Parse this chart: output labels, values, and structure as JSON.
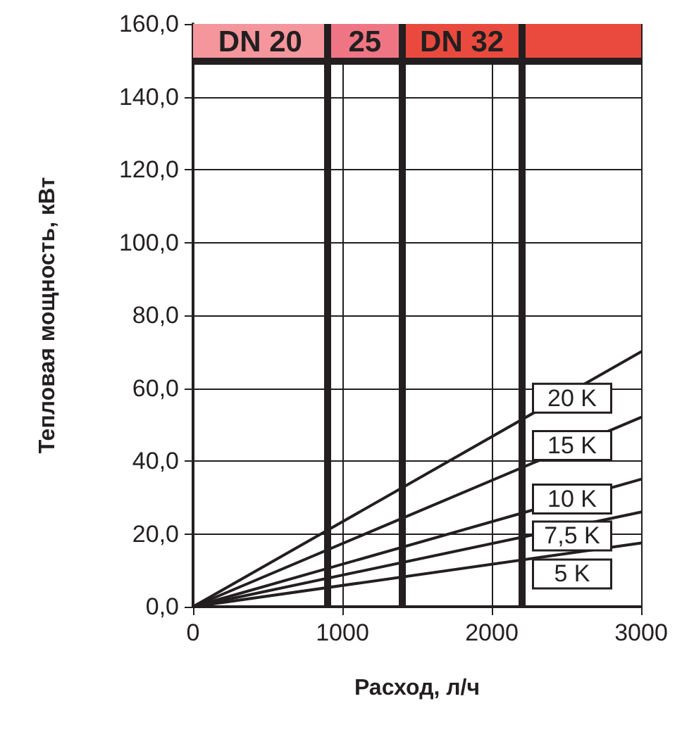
{
  "chart_data": {
    "type": "line",
    "xlabel": "Расход, л/ч",
    "ylabel": "Тепловая мощность, кВт",
    "x": [
      0,
      3000
    ],
    "series": [
      {
        "name": "20 K",
        "color": "#231f20",
        "values": [
          0,
          70
        ]
      },
      {
        "name": "15 K",
        "color": "#231f20",
        "values": [
          0,
          52
        ]
      },
      {
        "name": "10 K",
        "color": "#231f20",
        "values": [
          0,
          35
        ]
      },
      {
        "name": "7,5 K",
        "color": "#231f20",
        "values": [
          0,
          26
        ]
      },
      {
        "name": "5 K",
        "color": "#231f20",
        "values": [
          0,
          17.5
        ]
      }
    ],
    "xlim": [
      0,
      3000
    ],
    "xticks": [
      0,
      1000,
      2000,
      3000
    ],
    "ylim": [
      0,
      160
    ],
    "yticks": [
      {
        "value": 0,
        "label": "0,0"
      },
      {
        "value": 20,
        "label": "20,0"
      },
      {
        "value": 40,
        "label": "40,0"
      },
      {
        "value": 60,
        "label": "60,0"
      },
      {
        "value": 80,
        "label": "80,0"
      },
      {
        "value": 100,
        "label": "100,0"
      },
      {
        "value": 120,
        "label": "120,0"
      },
      {
        "value": 140,
        "label": "140,0"
      },
      {
        "value": 160,
        "label": "160,0"
      }
    ],
    "grid": true,
    "legend": "bottom right",
    "marker": "none",
    "line_style": "solid",
    "ref_lines": [
      {
        "axis": "x",
        "value": 900,
        "color": "#231f20"
      },
      {
        "axis": "x",
        "value": 1400,
        "color": "#231f20"
      },
      {
        "axis": "x",
        "value": 2200,
        "color": "#231f20"
      },
      {
        "axis": "y",
        "value": 150,
        "color": "#231f20"
      }
    ],
    "bands": [
      {
        "axis": "x",
        "from": 0,
        "to": 900,
        "label": "DN 20",
        "color": "#f4969c"
      },
      {
        "axis": "x",
        "from": 900,
        "to": 1400,
        "label": "25",
        "color": "#f07584"
      },
      {
        "axis": "x",
        "from": 1400,
        "to": 2200,
        "label": "DN 32",
        "color": "#ea4a3e"
      },
      {
        "axis": "x",
        "from": 2200,
        "to": 3000,
        "label": null,
        "color": "#ea4a3e"
      }
    ]
  }
}
